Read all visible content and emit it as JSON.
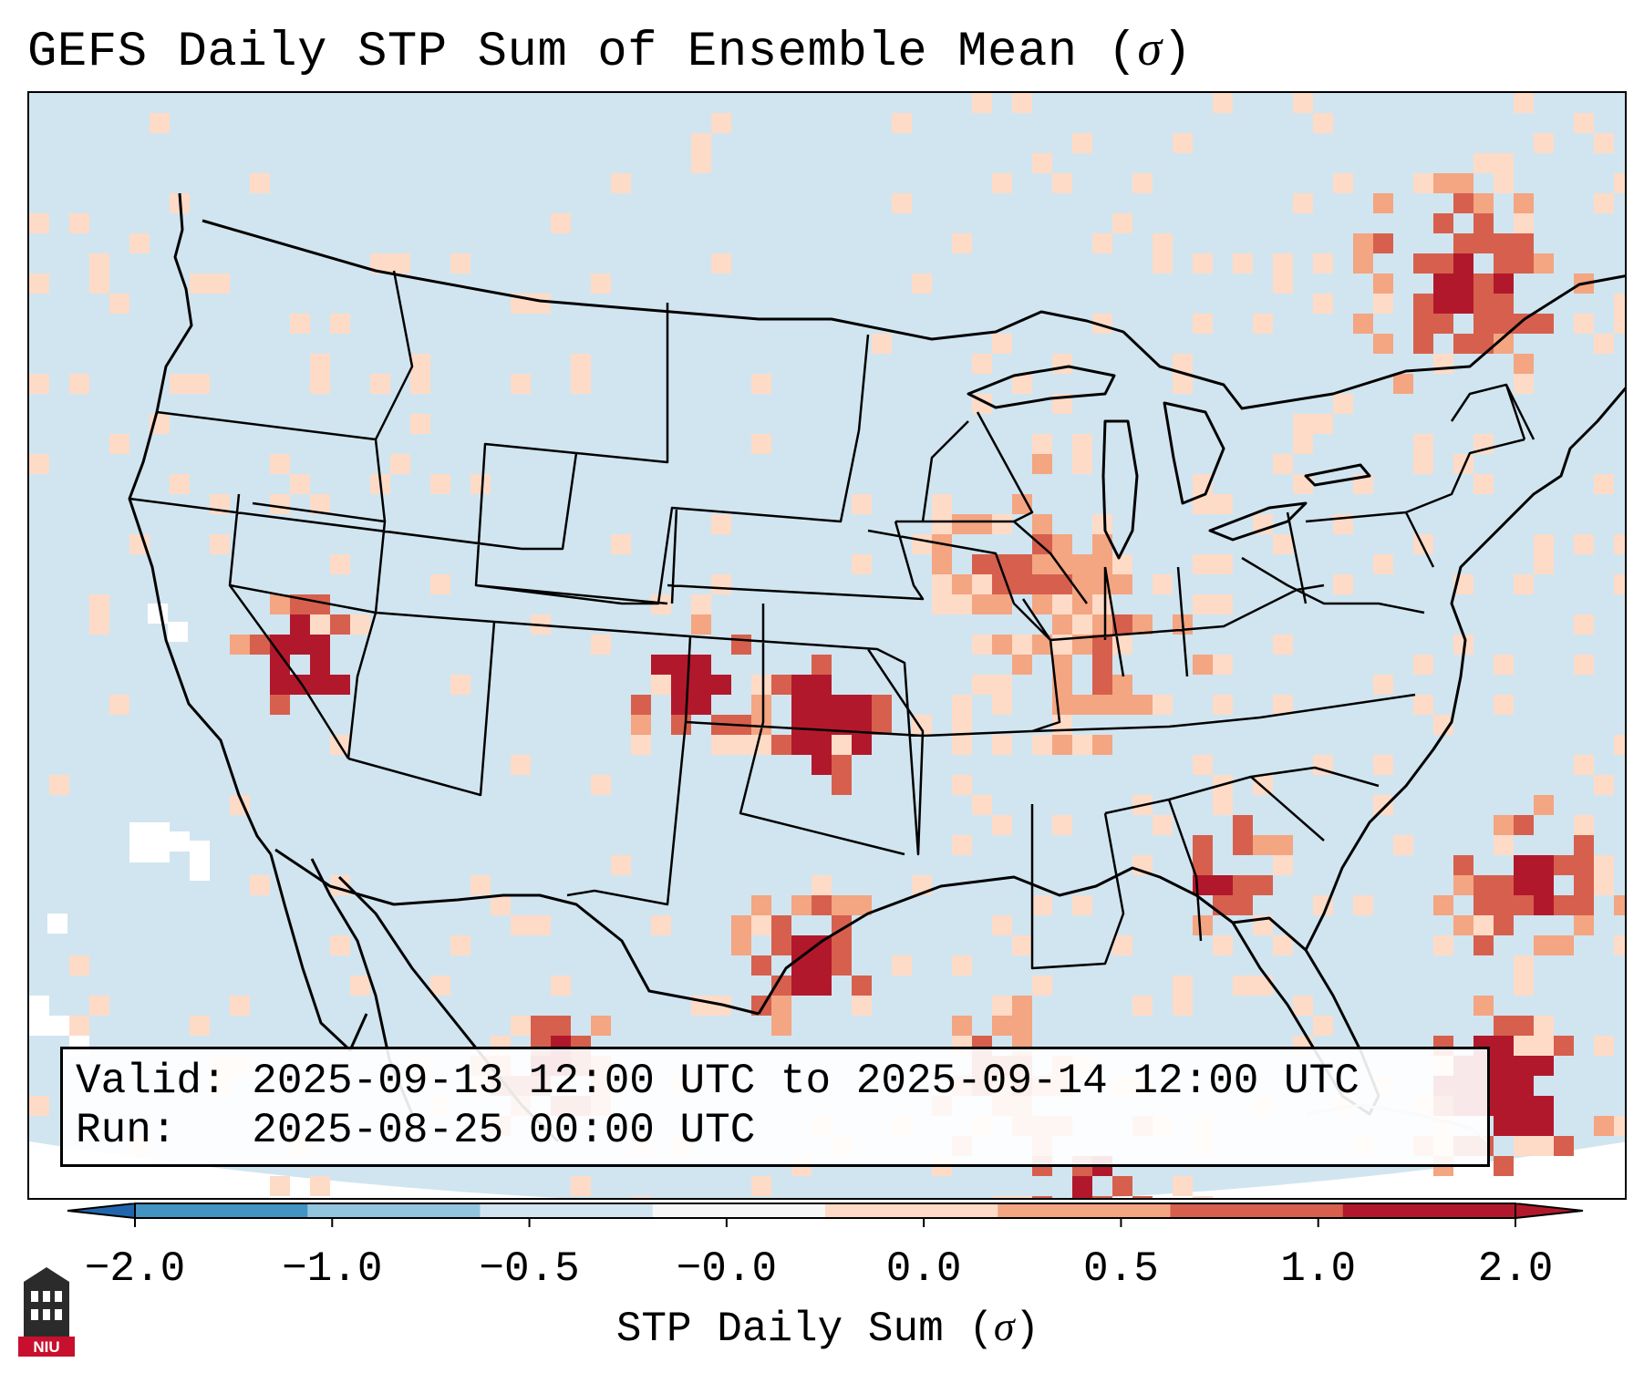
{
  "title": "GEFS Daily STP Sum of Ensemble Mean (σ)",
  "info": {
    "valid_line": "Valid: 2025-09-13 12:00 UTC to 2025-09-14 12:00 UTC",
    "run_line": "Run:   2025-08-25 00:00 UTC"
  },
  "colorbar": {
    "label": "STP Daily Sum (σ)",
    "ticks": [
      "−2.0",
      "−1.0",
      "−0.5",
      "−0.0",
      "0.0",
      "0.5",
      "1.0",
      "2.0"
    ],
    "colors": [
      "#4393c3",
      "#92c5de",
      "#d1e5f0",
      "#f7f7f7",
      "#fddbc7",
      "#f4a582",
      "#d6604d",
      "#b2182b"
    ],
    "under_color": "#2166ac",
    "over_color": "#b2182b"
  },
  "map": {
    "background_color": "#d1e5f0",
    "missing_color": "#ffffff",
    "hotspots": [
      {
        "region": "Nevada",
        "level": 3
      },
      {
        "region": "Colorado / Kansas",
        "level": 3
      },
      {
        "region": "Texas",
        "level": 2
      },
      {
        "region": "Bahamas / Caribbean",
        "level": 3
      },
      {
        "region": "Atlantic",
        "level": 2
      }
    ]
  },
  "logo": {
    "text": "NIU"
  }
}
